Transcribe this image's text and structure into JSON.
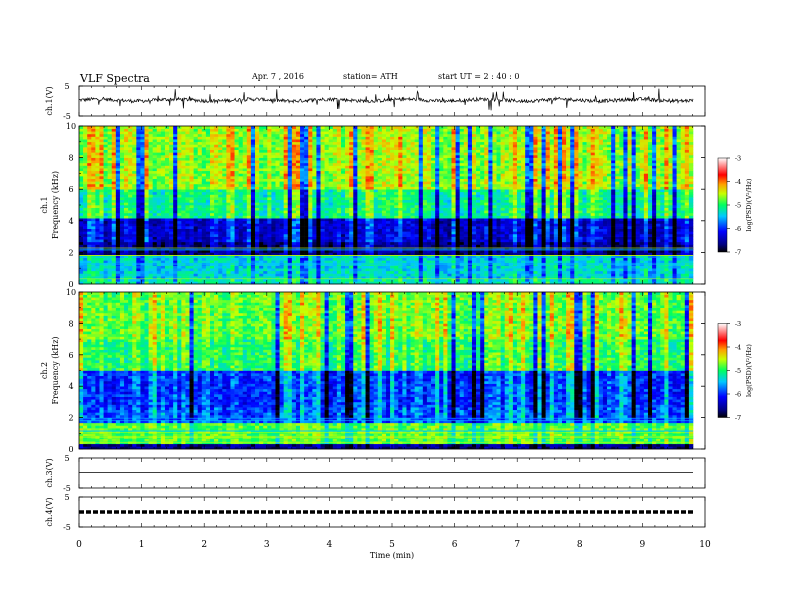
{
  "header": {
    "title": "VLF  Spectra",
    "date": "Apr. 7  ,  2016",
    "station": "station= ATH",
    "start": "start  UT  =   2  : 40 : 0"
  },
  "chart_data": [
    {
      "type": "line",
      "panel": "ch1-waveform",
      "ylabel": "ch.1(V)",
      "yticks": [
        "5",
        "-5"
      ],
      "ylim": [
        -5,
        5
      ],
      "description_values": "noisy waveform near +0.3 V with spikes",
      "x": [
        0,
        9.8
      ],
      "baseline": 0.3,
      "color": "#000000"
    },
    {
      "type": "heatmap",
      "panel": "ch1-spectrogram",
      "ylabel_top": "ch.1",
      "ylabel": "Frequency  (kHz)",
      "yticks": [
        "0",
        "2",
        "4",
        "6",
        "8",
        "10"
      ],
      "ylim": [
        0,
        10
      ],
      "xlim": [
        0,
        9.8
      ],
      "colorbar": {
        "label": "log(PSD)(V²/Hz)",
        "ticks": [
          "-3",
          "-4",
          "-5",
          "-6",
          "-7"
        ],
        "range": [
          -7,
          -3
        ]
      }
    },
    {
      "type": "heatmap",
      "panel": "ch2-spectrogram",
      "ylabel_top": "ch.2",
      "ylabel": "Frequency  (kHz)",
      "yticks": [
        "0",
        "2",
        "4",
        "6",
        "8",
        "10"
      ],
      "ylim": [
        0,
        10
      ],
      "xlim": [
        0,
        9.8
      ],
      "colorbar": {
        "label": "log(PSD)(V²/Hz)",
        "ticks": [
          "-3",
          "-4",
          "-5",
          "-6",
          "-7"
        ],
        "range": [
          -7,
          -3
        ]
      }
    },
    {
      "type": "line",
      "panel": "ch3-waveform",
      "ylabel": "ch.3(V)",
      "yticks": [
        "5",
        "-5"
      ],
      "ylim": [
        -5,
        5
      ],
      "baseline": 0.2
    },
    {
      "type": "line",
      "panel": "ch4-waveform",
      "ylabel": "ch.4(V)",
      "yticks": [
        "5",
        "-5"
      ],
      "ylim": [
        -5,
        5
      ],
      "baseline": 0,
      "style": "dashed"
    }
  ],
  "xaxis": {
    "label": "Time  (min)",
    "ticks": [
      "0",
      "1",
      "2",
      "3",
      "4",
      "5",
      "6",
      "7",
      "8",
      "9",
      "10"
    ],
    "xlim": [
      0,
      10
    ]
  }
}
